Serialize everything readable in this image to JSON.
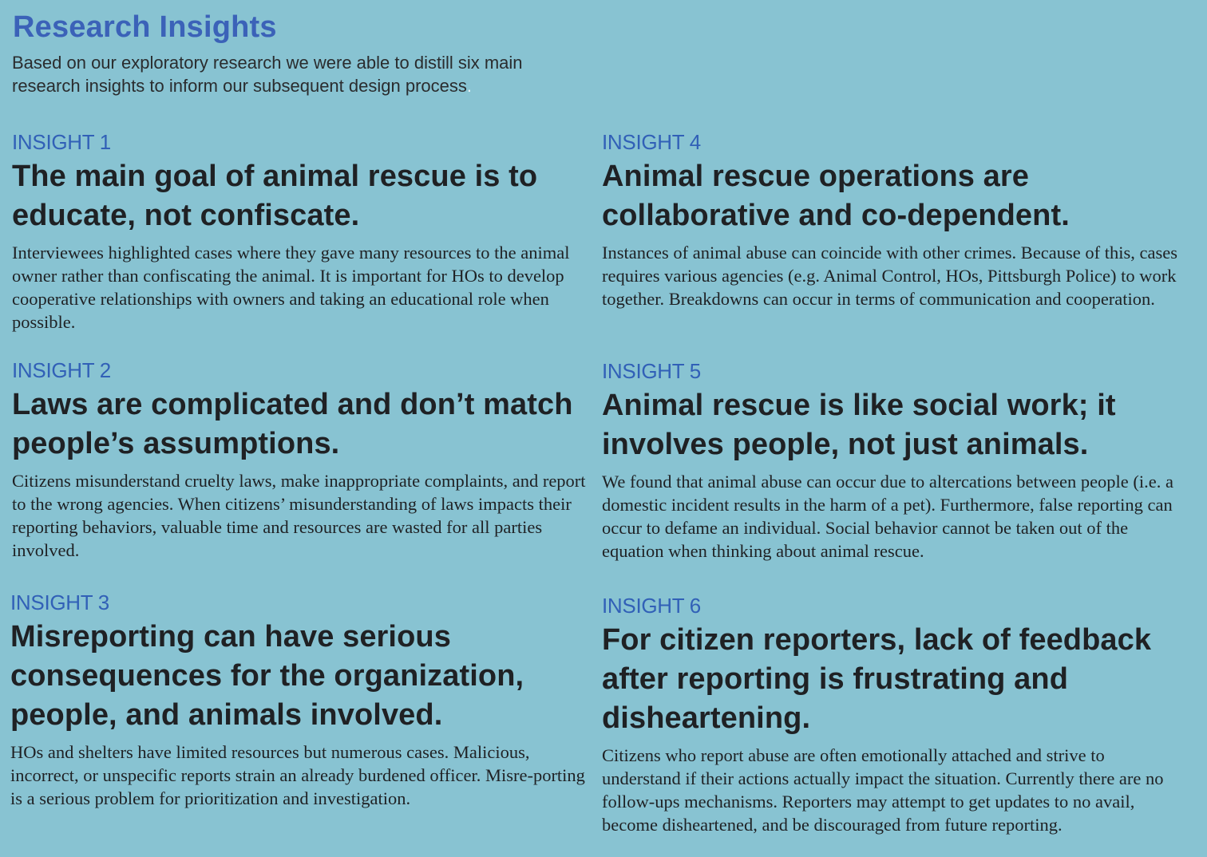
{
  "header": {
    "title": "Research Insights",
    "intro": "Based on our exploratory research we were able to distill six main research insights to inform our subsequent design process",
    "intro_end": "."
  },
  "insights": [
    {
      "label": "INSIGHT 1",
      "heading": "The main goal of animal rescue is to educate, not confiscate.",
      "body": "Interviewees highlighted cases where they gave many resources to the animal owner rather than confiscating the animal. It is important for HOs to develop cooperative relationships with owners and taking an educational role when possible."
    },
    {
      "label": "INSIGHT 2",
      "heading": "Laws are complicated and don’t match people’s assumptions.",
      "body": "Citizens misunderstand cruelty laws, make inappropriate complaints, and report to the wrong agencies. When citizens’ misunderstanding of laws impacts their reporting behaviors, valuable time and resources are wasted for all parties involved."
    },
    {
      "label": "INSIGHT 3",
      "heading": "Misreporting can have serious consequences for the organization, people, and animals involved.",
      "body": "HOs and shelters have limited resources but numerous cases. Malicious, incorrect, or unspecific reports strain an already burdened officer. Misre-porting is a serious problem for prioritization and investigation."
    },
    {
      "label": "INSIGHT 4",
      "heading": "Animal rescue operations are collaborative and co-dependent.",
      "body": "Instances of animal abuse can coincide with other crimes. Because of this, cases requires various agencies (e.g. Animal Control, HOs, Pittsburgh Police) to work together. Breakdowns can occur in terms of communication and cooperation."
    },
    {
      "label": "INSIGHT 5",
      "heading": "Animal rescue is like social work; it involves people, not just animals.",
      "body": "We found that animal abuse can occur due to altercations between people (i.e. a domestic incident results in the harm of a pet). Furthermore, false reporting can occur to defame an individual. Social behavior cannot be taken out of the equation when thinking about animal rescue."
    },
    {
      "label": "INSIGHT 6",
      "heading": "For citizen reporters, lack of feedback after reporting is frustrating and disheartening.",
      "body": "Citizens who report abuse are often emotionally attached and strive to understand if their actions actually impact the situation. Currently there are no follow-ups mechanisms. Reporters may attempt to get updates to no avail, become disheartened, and be discouraged from future reporting."
    }
  ]
}
